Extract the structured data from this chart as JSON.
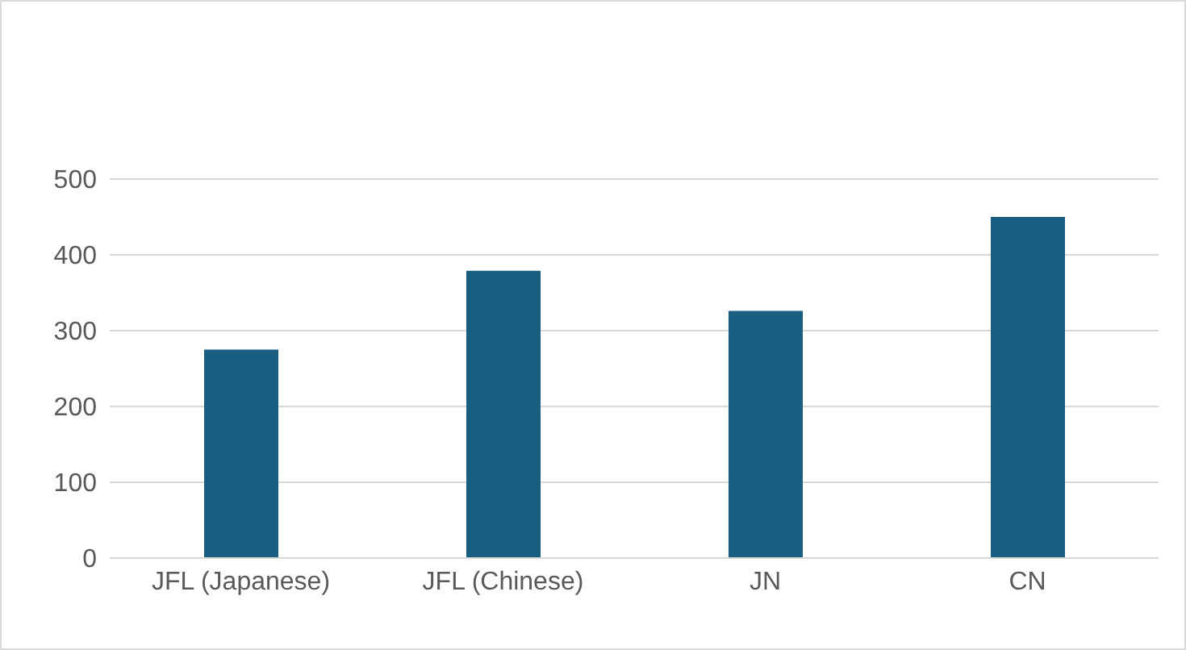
{
  "chart_data": {
    "type": "bar",
    "categories": [
      "JFL (Japanese)",
      "JFL (Chinese)",
      "JN",
      "CN"
    ],
    "values": [
      275,
      379,
      326,
      450
    ],
    "color": "#175e80",
    "ylim": [
      0,
      500
    ],
    "yticks": [
      0,
      100,
      200,
      300,
      400,
      500
    ],
    "grid": "y"
  }
}
